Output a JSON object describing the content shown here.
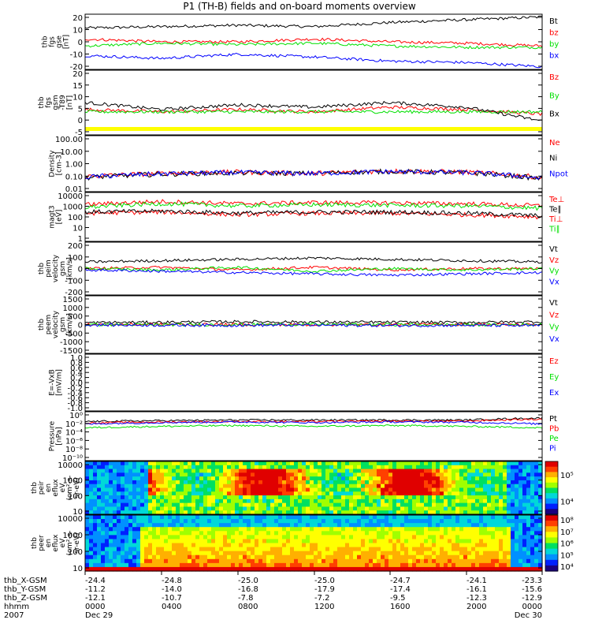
{
  "title": "P1 (TH-B) fields and on-board moments overview",
  "colors": {
    "black": "#000000",
    "red": "#ff0000",
    "green": "#00e000",
    "blue": "#0000ff",
    "yellow": "#ffff00"
  },
  "chart_data": [
    {
      "type": "line",
      "title": "",
      "ylabel_lines": [
        "thb",
        "fgs",
        "gse",
        "[nT]"
      ],
      "ylim": [
        -20,
        20
      ],
      "yticks": [
        "20",
        "10",
        "0",
        "-10",
        "-20"
      ],
      "legend": [
        "Bt",
        "bz",
        "by",
        "bx"
      ],
      "x": [
        "0000",
        "0400",
        "0800",
        "1200",
        "1600",
        "2000",
        "0000"
      ],
      "series": [
        {
          "name": "Bt",
          "values": [
            10,
            11,
            12,
            11,
            14,
            16,
            18
          ]
        },
        {
          "name": "bz",
          "values": [
            2,
            0,
            0,
            2,
            0,
            -1,
            -3
          ]
        },
        {
          "name": "by",
          "values": [
            -3,
            -1,
            -2,
            -1,
            -3,
            -4,
            -4
          ]
        },
        {
          "name": "bx",
          "values": [
            -10,
            -12,
            -9,
            -11,
            -14,
            -15,
            -18
          ]
        }
      ]
    },
    {
      "type": "line",
      "ylabel_lines": [
        "thb",
        "fgs",
        "gsm",
        "-T89",
        "[nT]"
      ],
      "ylim": [
        -8,
        20
      ],
      "yticks": [
        "20",
        "15",
        "10",
        "5",
        "0",
        "-5"
      ],
      "legend": [
        "Bz",
        "By",
        "Bx"
      ],
      "x": [
        "0000",
        "0400",
        "0800",
        "1200",
        "1600",
        "2000",
        "0000"
      ],
      "series": [
        {
          "name": "Bz",
          "values": [
            3,
            2,
            3,
            2,
            4,
            3,
            1
          ]
        },
        {
          "name": "By",
          "values": [
            2,
            2,
            2,
            2,
            2,
            2,
            2
          ]
        },
        {
          "name": "Bx",
          "values": [
            6,
            3,
            5,
            4,
            6,
            4,
            -2
          ]
        }
      ]
    },
    {
      "type": "line",
      "ylabel_lines": [
        "Density",
        "[cm-3]"
      ],
      "ylim": [
        0.01,
        100
      ],
      "log": true,
      "yticks": [
        "100.00",
        "10.00",
        "1.00",
        "0.10",
        "0.01"
      ],
      "legend": [
        "Ne",
        "Ni",
        "Npot"
      ],
      "x": [
        "0000",
        "0400",
        "0800",
        "1200",
        "1600",
        "2000",
        "0000"
      ],
      "series": [
        {
          "name": "Ne",
          "values": [
            0.12,
            0.2,
            0.25,
            0.2,
            0.3,
            0.25,
            0.1
          ]
        },
        {
          "name": "Ni",
          "values": [
            0.1,
            0.18,
            0.22,
            0.2,
            0.28,
            0.22,
            0.08
          ]
        },
        {
          "name": "Npot",
          "values": [
            0.11,
            0.19,
            0.23,
            0.2,
            0.27,
            0.23,
            0.09
          ]
        }
      ]
    },
    {
      "type": "line",
      "ylabel_lines": [
        "magt3",
        "[eV]"
      ],
      "ylim": [
        1,
        10000
      ],
      "log": true,
      "yticks": [
        "10000",
        "1000",
        "100",
        "10",
        "1"
      ],
      "legend": [
        "Te⊥",
        "Te∥",
        "Ti⊥",
        "Ti∥"
      ],
      "x": [
        "0000",
        "0400",
        "0800",
        "1200",
        "1600",
        "2000",
        "0000"
      ],
      "series": [
        {
          "name": "Te⊥",
          "values": [
            200,
            250,
            150,
            200,
            200,
            150,
            100
          ]
        },
        {
          "name": "Te∥",
          "values": [
            250,
            300,
            200,
            250,
            250,
            200,
            120
          ]
        },
        {
          "name": "Ti⊥",
          "values": [
            1000,
            1800,
            1200,
            1500,
            1400,
            1200,
            800
          ]
        },
        {
          "name": "Ti∥",
          "values": [
            600,
            1200,
            800,
            1000,
            900,
            800,
            500
          ]
        }
      ]
    },
    {
      "type": "line",
      "ylabel_lines": [
        "thb",
        "peim",
        "velocity",
        "gsm",
        "[km/s]"
      ],
      "ylim": [
        -200,
        200
      ],
      "yticks": [
        "200",
        "100",
        "0",
        "-100",
        "-200"
      ],
      "legend": [
        "Vt",
        "Vz",
        "Vy",
        "Vx"
      ],
      "x": [
        "0000",
        "0400",
        "0800",
        "1200",
        "1600",
        "2000",
        "0000"
      ],
      "series": [
        {
          "name": "Vt",
          "values": [
            50,
            60,
            70,
            80,
            70,
            60,
            50
          ]
        },
        {
          "name": "Vz",
          "values": [
            0,
            10,
            -10,
            10,
            -10,
            0,
            0
          ]
        },
        {
          "name": "Vy",
          "values": [
            0,
            -10,
            10,
            -20,
            0,
            -10,
            0
          ]
        },
        {
          "name": "Vx",
          "values": [
            -10,
            -20,
            -30,
            -40,
            -50,
            -40,
            -30
          ]
        }
      ]
    },
    {
      "type": "line",
      "ylabel_lines": [
        "thb",
        "peem",
        "velocity",
        "gsm",
        "[km/s]"
      ],
      "ylim": [
        -1500,
        1500
      ],
      "yticks": [
        "1500",
        "1000",
        "500",
        "0",
        "-500",
        "-1000",
        "-1500"
      ],
      "legend": [
        "Vt",
        "Vz",
        "Vy",
        "Vx"
      ],
      "x": [
        "0000",
        "0400",
        "0800",
        "1200",
        "1600",
        "2000",
        "0000"
      ],
      "series": [
        {
          "name": "Vt",
          "values": [
            100,
            120,
            150,
            130,
            120,
            110,
            150
          ]
        },
        {
          "name": "Vz",
          "values": [
            0,
            10,
            0,
            -10,
            0,
            10,
            0
          ]
        },
        {
          "name": "Vy",
          "values": [
            0,
            -10,
            0,
            10,
            0,
            -10,
            0
          ]
        },
        {
          "name": "Vx",
          "values": [
            -20,
            -30,
            -40,
            -30,
            -50,
            -40,
            -60
          ]
        }
      ]
    },
    {
      "type": "line",
      "ylabel_lines": [
        "E=-VxB",
        "[mV/m]"
      ],
      "ylim": [
        -1,
        1
      ],
      "yticks": [
        "1.0",
        "0.8",
        "0.6",
        "0.4",
        "0.2",
        "0.0",
        "-0.2",
        "-0.4",
        "-0.6",
        "-0.8",
        "-1.0"
      ],
      "legend": [
        "Ez",
        "Ey",
        "Ex"
      ],
      "series": []
    },
    {
      "type": "line",
      "ylabel_lines": [
        "Pressure",
        "[nPa]"
      ],
      "ylim": [
        1e-10,
        1
      ],
      "log": true,
      "yticks": [
        "10⁰",
        "10⁻²",
        "10⁻⁴",
        "10⁻⁶",
        "10⁻⁸",
        "10⁻¹⁰"
      ],
      "legend": [
        "Pt",
        "Pb",
        "Pe",
        "Pi"
      ],
      "x": [
        "0000",
        "0400",
        "0800",
        "1200",
        "1600",
        "2000",
        "0000"
      ],
      "series": [
        {
          "name": "Pt",
          "values": [
            0.01,
            0.015,
            0.02,
            0.02,
            0.02,
            0.02,
            0.05
          ]
        },
        {
          "name": "Pb",
          "values": [
            0.005,
            0.008,
            0.01,
            0.01,
            0.012,
            0.012,
            0.03
          ]
        },
        {
          "name": "Pe",
          "values": [
            0.0005,
            0.001,
            0.0015,
            0.001,
            0.0015,
            0.001,
            0.0005
          ]
        },
        {
          "name": "Pi",
          "values": [
            0.003,
            0.006,
            0.008,
            0.006,
            0.008,
            0.007,
            0.003
          ]
        }
      ]
    },
    {
      "type": "heatmap",
      "ylabel_lines": [
        "thb",
        "peir",
        "en",
        "eflux",
        "eV",
        "(cm²-s-",
        "sr-eV)"
      ],
      "ylim": [
        10,
        20000
      ],
      "log": true,
      "yticks": [
        "10000",
        "1000",
        "100",
        "10"
      ],
      "colorbar_ticks": [
        "10⁵",
        "10⁴"
      ]
    },
    {
      "type": "heatmap",
      "ylabel_lines": [
        "thb",
        "peer",
        "en",
        "eflux",
        "eV",
        "(cm²-s-",
        "sr-eV)"
      ],
      "ylim": [
        5,
        20000
      ],
      "log": true,
      "yticks": [
        "10000",
        "1000",
        "100",
        "10"
      ],
      "colorbar_ticks": [
        "10⁸",
        "10⁷",
        "10⁶",
        "10⁵",
        "10⁴"
      ]
    }
  ],
  "x_axis": {
    "row_labels": [
      "thb_X-GSM",
      "thb_Y-GSM",
      "thb_Z-GSM",
      "hhmm",
      "2007"
    ],
    "columns": [
      {
        "values": [
          "-24.4",
          "-11.2",
          "-12.1",
          "0000",
          "Dec 29"
        ]
      },
      {
        "values": [
          "-24.8",
          "-14.0",
          "-10.7",
          "0400",
          ""
        ]
      },
      {
        "values": [
          "-25.0",
          "-16.8",
          "-7.8",
          "0800",
          ""
        ]
      },
      {
        "values": [
          "-25.0",
          "-17.9",
          "-7.2",
          "1200",
          ""
        ]
      },
      {
        "values": [
          "-24.7",
          "-17.4",
          "-9.5",
          "1600",
          ""
        ]
      },
      {
        "values": [
          "-24.1",
          "-16.1",
          "-12.3",
          "2000",
          ""
        ]
      },
      {
        "values": [
          "-23.3",
          "-15.6",
          "-12.9",
          "0000",
          "Dec 30"
        ]
      }
    ]
  }
}
